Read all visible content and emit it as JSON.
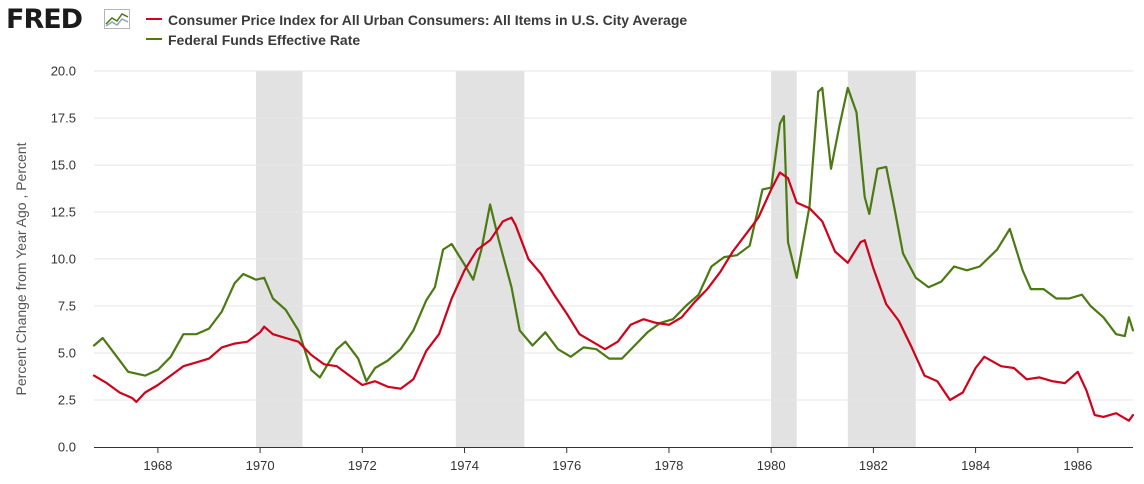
{
  "header": {
    "logo_text": "FRED",
    "logo_icon": "fred-chart-icon"
  },
  "colors": {
    "cpi": "#d0021b",
    "fedfunds": "#4c7a12",
    "recession": "#e2e2e2",
    "grid": "#e6e6e6",
    "axis": "#333333"
  },
  "chart_data": {
    "type": "line",
    "ylabel": "Percent Change from Year Ago , Percent",
    "xlim": [
      1966.75,
      1987.08
    ],
    "ylim": [
      0,
      20
    ],
    "y_ticks": [
      "0.0",
      "2.5",
      "5.0",
      "7.5",
      "10.0",
      "12.5",
      "15.0",
      "17.5",
      "20.0"
    ],
    "x_ticks": [
      "1968",
      "1970",
      "1972",
      "1974",
      "1976",
      "1978",
      "1980",
      "1982",
      "1984",
      "1986"
    ],
    "recessions": [
      [
        1969.92,
        1970.83
      ],
      [
        1973.83,
        1975.17
      ],
      [
        1980.0,
        1980.5
      ],
      [
        1981.5,
        1982.83
      ]
    ],
    "series": [
      {
        "name": "Consumer Price Index for All Urban Consumers: All Items in U.S. City Average",
        "points": [
          [
            1966.75,
            3.8
          ],
          [
            1967.0,
            3.4
          ],
          [
            1967.25,
            2.9
          ],
          [
            1967.5,
            2.6
          ],
          [
            1967.58,
            2.4
          ],
          [
            1967.75,
            2.9
          ],
          [
            1968.0,
            3.3
          ],
          [
            1968.25,
            3.8
          ],
          [
            1968.5,
            4.3
          ],
          [
            1968.75,
            4.5
          ],
          [
            1969.0,
            4.7
          ],
          [
            1969.25,
            5.3
          ],
          [
            1969.5,
            5.5
          ],
          [
            1969.75,
            5.6
          ],
          [
            1970.0,
            6.1
          ],
          [
            1970.08,
            6.4
          ],
          [
            1970.25,
            6.0
          ],
          [
            1970.5,
            5.8
          ],
          [
            1970.75,
            5.6
          ],
          [
            1971.0,
            4.9
          ],
          [
            1971.25,
            4.4
          ],
          [
            1971.5,
            4.3
          ],
          [
            1971.75,
            3.8
          ],
          [
            1972.0,
            3.3
          ],
          [
            1972.25,
            3.5
          ],
          [
            1972.5,
            3.2
          ],
          [
            1972.75,
            3.1
          ],
          [
            1973.0,
            3.6
          ],
          [
            1973.25,
            5.1
          ],
          [
            1973.5,
            6.0
          ],
          [
            1973.75,
            7.9
          ],
          [
            1974.0,
            9.4
          ],
          [
            1974.25,
            10.5
          ],
          [
            1974.5,
            11.0
          ],
          [
            1974.75,
            12.0
          ],
          [
            1974.92,
            12.2
          ],
          [
            1975.0,
            11.8
          ],
          [
            1975.25,
            10.0
          ],
          [
            1975.5,
            9.2
          ],
          [
            1975.75,
            8.1
          ],
          [
            1976.0,
            7.1
          ],
          [
            1976.25,
            6.0
          ],
          [
            1976.5,
            5.6
          ],
          [
            1976.75,
            5.2
          ],
          [
            1977.0,
            5.6
          ],
          [
            1977.25,
            6.5
          ],
          [
            1977.5,
            6.8
          ],
          [
            1977.75,
            6.6
          ],
          [
            1978.0,
            6.5
          ],
          [
            1978.25,
            6.9
          ],
          [
            1978.5,
            7.7
          ],
          [
            1978.75,
            8.4
          ],
          [
            1979.0,
            9.3
          ],
          [
            1979.25,
            10.4
          ],
          [
            1979.5,
            11.3
          ],
          [
            1979.75,
            12.2
          ],
          [
            1980.0,
            13.7
          ],
          [
            1980.17,
            14.6
          ],
          [
            1980.33,
            14.3
          ],
          [
            1980.5,
            13.0
          ],
          [
            1980.75,
            12.7
          ],
          [
            1981.0,
            12.0
          ],
          [
            1981.25,
            10.4
          ],
          [
            1981.5,
            9.8
          ],
          [
            1981.75,
            10.9
          ],
          [
            1981.83,
            11.0
          ],
          [
            1982.0,
            9.5
          ],
          [
            1982.25,
            7.6
          ],
          [
            1982.5,
            6.7
          ],
          [
            1982.75,
            5.3
          ],
          [
            1983.0,
            3.8
          ],
          [
            1983.25,
            3.5
          ],
          [
            1983.5,
            2.5
          ],
          [
            1983.75,
            2.9
          ],
          [
            1984.0,
            4.2
          ],
          [
            1984.17,
            4.8
          ],
          [
            1984.5,
            4.3
          ],
          [
            1984.75,
            4.2
          ],
          [
            1985.0,
            3.6
          ],
          [
            1985.25,
            3.7
          ],
          [
            1985.5,
            3.5
          ],
          [
            1985.75,
            3.4
          ],
          [
            1986.0,
            4.0
          ],
          [
            1986.17,
            3.0
          ],
          [
            1986.33,
            1.7
          ],
          [
            1986.5,
            1.6
          ],
          [
            1986.75,
            1.8
          ],
          [
            1987.0,
            1.4
          ],
          [
            1987.08,
            1.7
          ]
        ]
      },
      {
        "name": "Federal Funds Effective Rate",
        "points": [
          [
            1966.75,
            5.4
          ],
          [
            1966.92,
            5.8
          ],
          [
            1967.17,
            4.9
          ],
          [
            1967.42,
            4.0
          ],
          [
            1967.75,
            3.8
          ],
          [
            1968.0,
            4.1
          ],
          [
            1968.25,
            4.8
          ],
          [
            1968.5,
            6.0
          ],
          [
            1968.75,
            6.0
          ],
          [
            1969.0,
            6.3
          ],
          [
            1969.25,
            7.2
          ],
          [
            1969.5,
            8.7
          ],
          [
            1969.67,
            9.2
          ],
          [
            1969.92,
            8.9
          ],
          [
            1970.08,
            9.0
          ],
          [
            1970.25,
            7.9
          ],
          [
            1970.5,
            7.3
          ],
          [
            1970.75,
            6.2
          ],
          [
            1971.0,
            4.1
          ],
          [
            1971.17,
            3.7
          ],
          [
            1971.5,
            5.2
          ],
          [
            1971.67,
            5.6
          ],
          [
            1971.92,
            4.7
          ],
          [
            1972.08,
            3.5
          ],
          [
            1972.25,
            4.2
          ],
          [
            1972.5,
            4.6
          ],
          [
            1972.75,
            5.2
          ],
          [
            1973.0,
            6.2
          ],
          [
            1973.25,
            7.8
          ],
          [
            1973.42,
            8.5
          ],
          [
            1973.58,
            10.5
          ],
          [
            1973.75,
            10.8
          ],
          [
            1974.0,
            9.7
          ],
          [
            1974.17,
            8.9
          ],
          [
            1974.33,
            10.5
          ],
          [
            1974.5,
            12.9
          ],
          [
            1974.67,
            11.0
          ],
          [
            1974.92,
            8.5
          ],
          [
            1975.08,
            6.2
          ],
          [
            1975.33,
            5.4
          ],
          [
            1975.58,
            6.1
          ],
          [
            1975.83,
            5.2
          ],
          [
            1976.08,
            4.8
          ],
          [
            1976.33,
            5.3
          ],
          [
            1976.58,
            5.2
          ],
          [
            1976.83,
            4.7
          ],
          [
            1977.08,
            4.7
          ],
          [
            1977.33,
            5.4
          ],
          [
            1977.58,
            6.1
          ],
          [
            1977.83,
            6.6
          ],
          [
            1978.08,
            6.8
          ],
          [
            1978.33,
            7.5
          ],
          [
            1978.58,
            8.1
          ],
          [
            1978.83,
            9.6
          ],
          [
            1979.08,
            10.1
          ],
          [
            1979.33,
            10.2
          ],
          [
            1979.58,
            10.7
          ],
          [
            1979.83,
            13.7
          ],
          [
            1980.0,
            13.8
          ],
          [
            1980.17,
            17.2
          ],
          [
            1980.25,
            17.6
          ],
          [
            1980.33,
            10.9
          ],
          [
            1980.5,
            9.0
          ],
          [
            1980.75,
            12.8
          ],
          [
            1980.92,
            18.9
          ],
          [
            1981.0,
            19.1
          ],
          [
            1981.17,
            14.8
          ],
          [
            1981.33,
            17.0
          ],
          [
            1981.5,
            19.1
          ],
          [
            1981.67,
            17.8
          ],
          [
            1981.83,
            13.3
          ],
          [
            1981.92,
            12.4
          ],
          [
            1982.08,
            14.8
          ],
          [
            1982.25,
            14.9
          ],
          [
            1982.42,
            12.6
          ],
          [
            1982.58,
            10.3
          ],
          [
            1982.83,
            9.0
          ],
          [
            1983.08,
            8.5
          ],
          [
            1983.33,
            8.8
          ],
          [
            1983.58,
            9.6
          ],
          [
            1983.83,
            9.4
          ],
          [
            1984.08,
            9.6
          ],
          [
            1984.42,
            10.5
          ],
          [
            1984.67,
            11.6
          ],
          [
            1984.92,
            9.4
          ],
          [
            1985.08,
            8.4
          ],
          [
            1985.33,
            8.4
          ],
          [
            1985.58,
            7.9
          ],
          [
            1985.83,
            7.9
          ],
          [
            1986.08,
            8.1
          ],
          [
            1986.25,
            7.5
          ],
          [
            1986.5,
            6.9
          ],
          [
            1986.75,
            6.0
          ],
          [
            1986.92,
            5.9
          ],
          [
            1987.0,
            6.9
          ],
          [
            1987.08,
            6.2
          ]
        ]
      }
    ]
  }
}
